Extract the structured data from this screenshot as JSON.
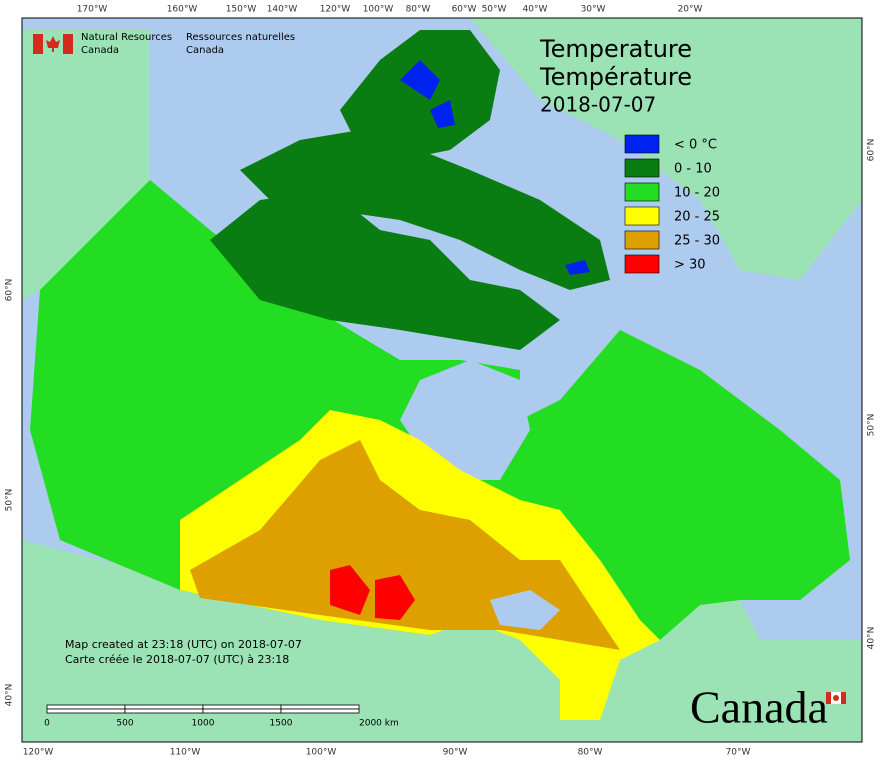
{
  "header": {
    "agency_en": [
      "Natural Resources",
      "Canada"
    ],
    "agency_fr": [
      "Ressources naturelles",
      "Canada"
    ]
  },
  "title": [
    "Temperature",
    "Température",
    "2018-07-07"
  ],
  "legend": [
    {
      "label": "< 0 °C",
      "color": "#0022ee"
    },
    {
      "label": "0 - 10",
      "color": "#0a7d12"
    },
    {
      "label": "10 - 20",
      "color": "#22dd22"
    },
    {
      "label": "20 - 25",
      "color": "#ffff00"
    },
    {
      "label": "25 - 30",
      "color": "#dda000"
    },
    {
      "label": "> 30",
      "color": "#ff0000"
    }
  ],
  "longitude_labels_top": [
    "170°W",
    "160°W",
    "150°W",
    "140°W",
    "120°W",
    "100°W",
    "80°W",
    "60°W",
    "50°W",
    "40°W",
    "30°W",
    "20°W"
  ],
  "longitude_labels_bottom": [
    "120°W",
    "110°W",
    "100°W",
    "90°W",
    "80°W",
    "70°W"
  ],
  "latitude_labels_left": [
    "60°N",
    "50°N",
    "40°N"
  ],
  "latitude_labels_right": [
    "60°N",
    "50°N",
    "40°N"
  ],
  "notes": [
    "Map created at 23:18 (UTC) on 2018-07-07",
    "Carte créée le 2018-07-07 (UTC) à 23:18"
  ],
  "scale_bar": [
    "0",
    "500",
    "1000",
    "1500",
    "2000 km"
  ],
  "wordmark": "Canada"
}
